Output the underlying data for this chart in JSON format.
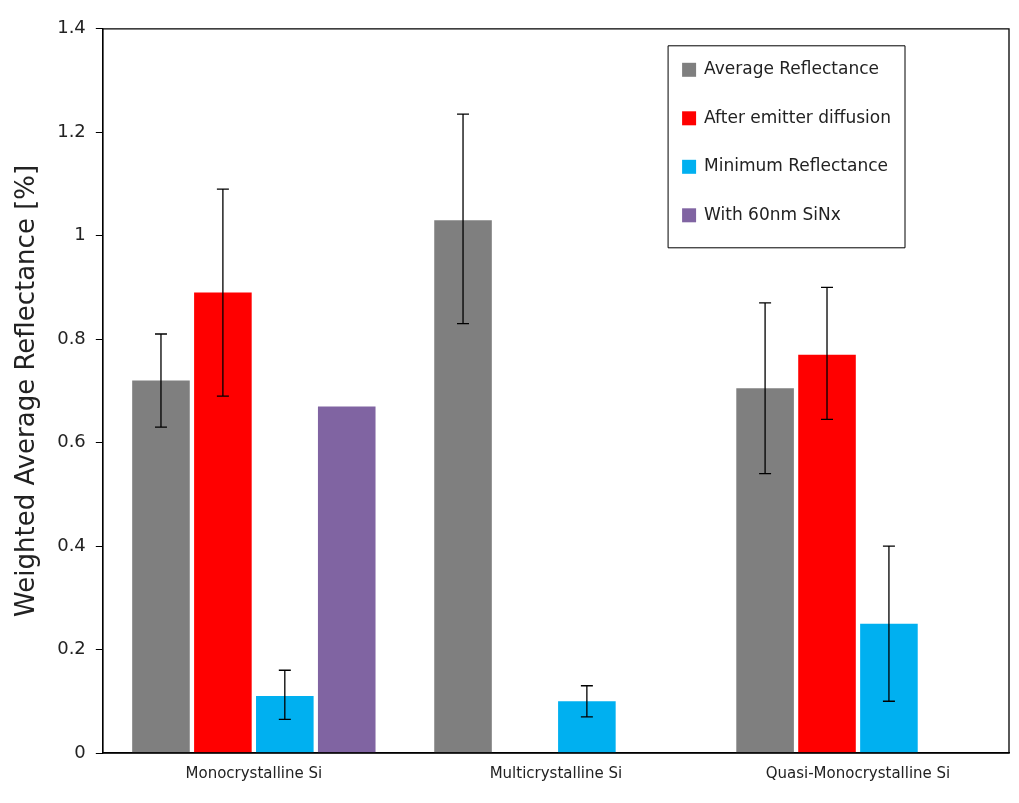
{
  "chart_data": {
    "type": "bar",
    "ylabel": "Weighted Average Reflectance [%]",
    "categories": [
      "Monocrystalline Si",
      "Multicrystalline Si",
      "Quasi-Monocrystalline Si"
    ],
    "series": [
      {
        "name": "Average Reflectance",
        "color": "#7f7f7f",
        "values": [
          0.72,
          1.03,
          0.705
        ],
        "errors": [
          [
            0.63,
            0.81
          ],
          [
            0.83,
            1.235
          ],
          [
            0.54,
            0.87
          ]
        ]
      },
      {
        "name": "After emitter diffusion",
        "color": "#ff0000",
        "values": [
          0.89,
          null,
          0.77
        ],
        "errors": [
          [
            0.69,
            1.09
          ],
          null,
          [
            0.645,
            0.9
          ]
        ]
      },
      {
        "name": "Minimum Reflectance",
        "color": "#00b0f0",
        "values": [
          0.11,
          0.1,
          0.25
        ],
        "errors": [
          [
            0.065,
            0.16
          ],
          [
            0.07,
            0.13
          ],
          [
            0.1,
            0.4
          ]
        ]
      },
      {
        "name": "With 60nm SiNx",
        "color": "#8064a2",
        "values": [
          0.67,
          null,
          null
        ]
      }
    ],
    "ylim": [
      0,
      1.4
    ],
    "yticks": [
      0,
      0.2,
      0.4,
      0.6,
      0.8,
      1,
      1.2,
      1.4
    ],
    "grid": false,
    "legend": "top right"
  }
}
